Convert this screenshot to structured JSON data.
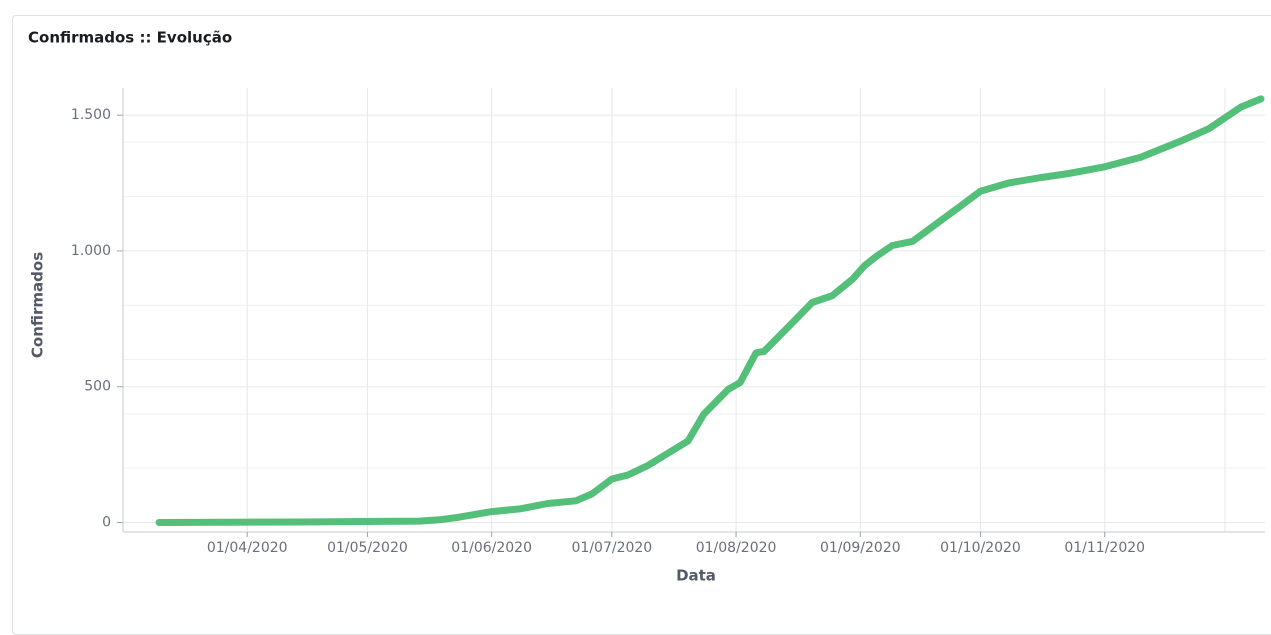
{
  "chart_data": {
    "type": "line",
    "title": "Confirmados :: Evolução",
    "x_label": "Data",
    "y_label": "Confirmados",
    "x": [
      "10/03/2020",
      "14/04/2020",
      "14/05/2020",
      "19/05/2020",
      "24/05/2020",
      "01/06/2020",
      "08/06/2020",
      "15/06/2020",
      "22/06/2020",
      "26/06/2020",
      "01/07/2020",
      "05/07/2020",
      "10/07/2020",
      "15/07/2020",
      "20/07/2020",
      "24/07/2020",
      "30/07/2020",
      "02/08/2020",
      "06/08/2020",
      "08/08/2020",
      "15/08/2020",
      "20/08/2020",
      "25/08/2020",
      "30/08/2020",
      "02/09/2020",
      "05/09/2020",
      "09/09/2020",
      "14/09/2020",
      "20/09/2020",
      "26/09/2020",
      "01/10/2020",
      "08/10/2020",
      "16/10/2020",
      "23/10/2020",
      "01/11/2020",
      "10/11/2020",
      "20/11/2020",
      "27/11/2020",
      "05/12/2020",
      "10/12/2020"
    ],
    "series": [
      {
        "name": "Confirmados",
        "color": "#54bf78",
        "values": [
          0,
          2,
          5,
          10,
          20,
          40,
          50,
          70,
          80,
          105,
          160,
          175,
          210,
          255,
          300,
          400,
          490,
          515,
          625,
          630,
          735,
          810,
          835,
          895,
          945,
          980,
          1020,
          1035,
          1100,
          1165,
          1220,
          1250,
          1270,
          1285,
          1310,
          1345,
          1405,
          1450,
          1530,
          1560
        ]
      }
    ],
    "xlim": [
      "01/03/2020",
      "11/12/2020"
    ],
    "xticks": [
      "01/04/2020",
      "01/05/2020",
      "01/06/2020",
      "01/07/2020",
      "01/08/2020",
      "01/09/2020",
      "01/10/2020",
      "01/11/2020"
    ],
    "xgrid": [
      "01/03/2020",
      "01/04/2020",
      "01/05/2020",
      "01/06/2020",
      "01/07/2020",
      "01/08/2020",
      "01/09/2020",
      "01/10/2020",
      "01/11/2020",
      "01/12/2020"
    ],
    "ylim": [
      -35,
      1600
    ],
    "yticks": [
      0,
      {
        "value": 500,
        "label": "500"
      },
      {
        "value": 1000,
        "label": "1.000"
      },
      {
        "value": 1500,
        "label": "1.500"
      }
    ],
    "yminor": [
      200,
      400,
      600,
      800,
      1200,
      1400
    ],
    "grid": true
  }
}
